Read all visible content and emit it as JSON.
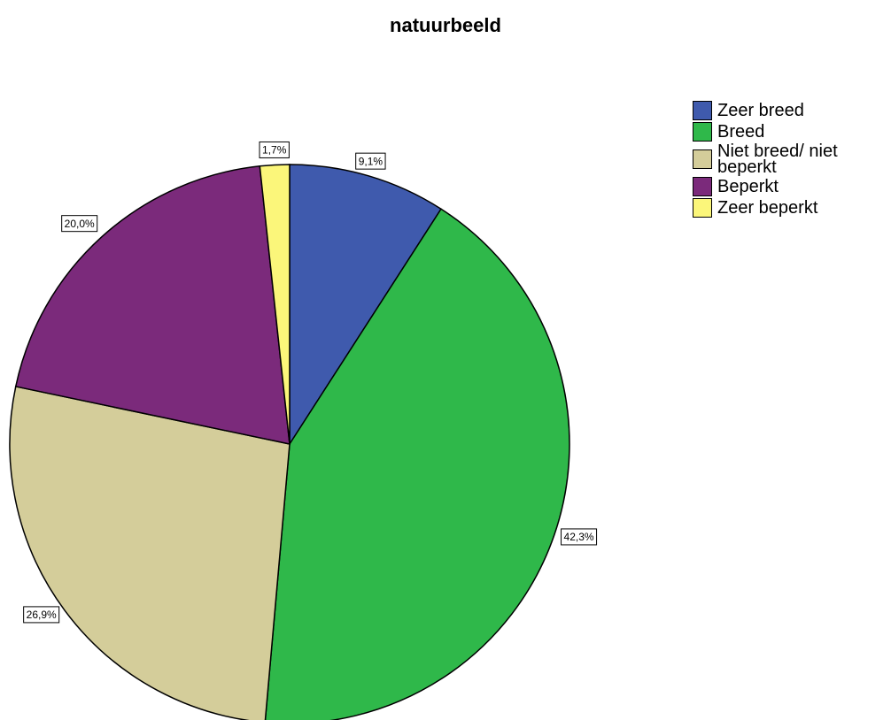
{
  "chart_data": {
    "type": "pie",
    "title": "natuurbeeld",
    "categories": [
      "Zeer breed",
      "Breed",
      "Niet breed/ niet beperkt",
      "Beperkt",
      "Zeer beperkt"
    ],
    "values": [
      9.1,
      42.3,
      26.9,
      20.0,
      1.7
    ],
    "value_labels": [
      "9,1%",
      "42,3%",
      "26,9%",
      "20,0%",
      "1,7%"
    ],
    "colors": [
      "#3f5aad",
      "#2fb84a",
      "#d4cd9a",
      "#7b2a7b",
      "#fbf67a"
    ]
  }
}
